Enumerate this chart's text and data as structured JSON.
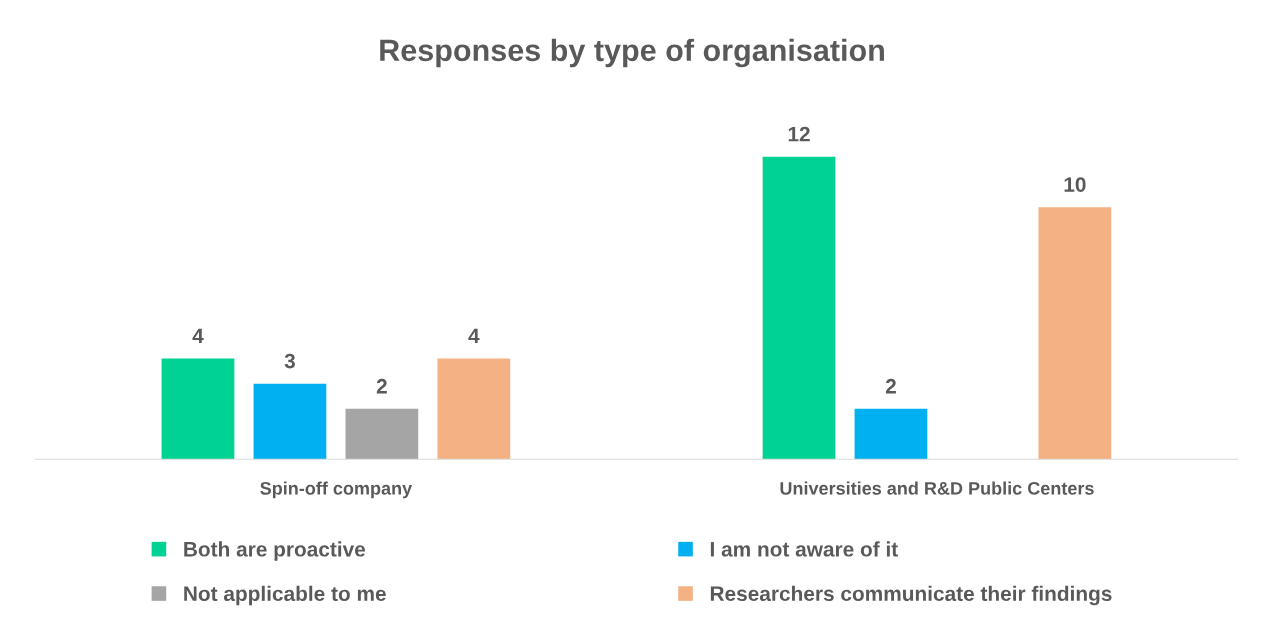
{
  "chart_data": {
    "type": "bar",
    "title": "Responses by type of organisation",
    "categories": [
      "Spin-off company",
      "Universities and R&D Public Centers"
    ],
    "series": [
      {
        "name": "Both are proactive",
        "color": "#00d294",
        "values": [
          4,
          12
        ]
      },
      {
        "name": "I am not aware of it",
        "color": "#00b0f0",
        "values": [
          3,
          2
        ]
      },
      {
        "name": "Not applicable to me",
        "color": "#a5a5a5",
        "values": [
          2,
          null
        ]
      },
      {
        "name": "Researchers communicate their findings",
        "color": "#f4b183",
        "values": [
          4,
          10
        ]
      }
    ],
    "data_labels": true,
    "legend": "bottom",
    "grid": false
  }
}
